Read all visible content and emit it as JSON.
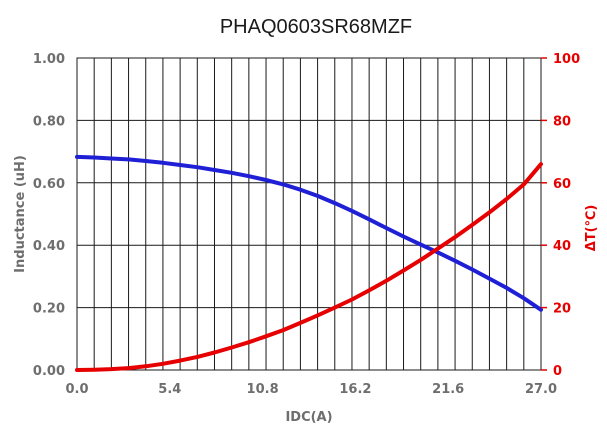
{
  "chart_data": {
    "type": "line",
    "title": "PHAQ0603SR68MZF",
    "xlabel": "IDC(A)",
    "ylabel_left": "Inductance (uH)",
    "ylabel_right": "ΔT(℃)",
    "xlim": [
      0,
      27.0
    ],
    "ylim_left": [
      0,
      1.0
    ],
    "ylim_right": [
      0,
      100
    ],
    "x_ticks": [
      "0.0",
      "5.4",
      "10.8",
      "16.2",
      "21.6",
      "27.0"
    ],
    "y_left_ticks": [
      "0.00",
      "0.20",
      "0.40",
      "0.60",
      "0.80",
      "1.00"
    ],
    "y_right_ticks": [
      "0",
      "20",
      "40",
      "60",
      "80",
      "100"
    ],
    "grid": "vertical every 1 A, horizontal every 0.20 uH",
    "series": [
      {
        "axis": "left",
        "color": "#1f1fd6",
        "x": [
          0,
          1,
          2,
          3,
          4,
          5,
          6,
          7,
          8,
          9,
          10,
          11,
          12,
          13,
          14,
          15,
          16,
          17,
          18,
          19,
          20,
          21,
          22,
          23,
          24,
          25,
          26,
          27
        ],
        "values": [
          0.683,
          0.681,
          0.678,
          0.675,
          0.67,
          0.664,
          0.657,
          0.65,
          0.641,
          0.632,
          0.621,
          0.609,
          0.595,
          0.578,
          0.558,
          0.535,
          0.51,
          0.483,
          0.455,
          0.428,
          0.402,
          0.377,
          0.35,
          0.322,
          0.293,
          0.263,
          0.23,
          0.193
        ]
      },
      {
        "axis": "right",
        "color": "#e60000",
        "x": [
          0,
          1,
          2,
          3,
          4,
          5,
          6,
          7,
          8,
          9,
          10,
          11,
          12,
          13,
          14,
          15,
          16,
          17,
          18,
          19,
          20,
          21,
          22,
          23,
          24,
          25,
          26,
          27
        ],
        "values": [
          0,
          0.1,
          0.3,
          0.6,
          1.2,
          2.0,
          3.0,
          4.2,
          5.6,
          7.2,
          8.9,
          10.8,
          12.8,
          15.1,
          17.5,
          20.0,
          22.6,
          25.5,
          28.6,
          31.9,
          35.3,
          38.9,
          42.6,
          46.5,
          50.5,
          54.8,
          59.5,
          66.0
        ]
      }
    ]
  }
}
